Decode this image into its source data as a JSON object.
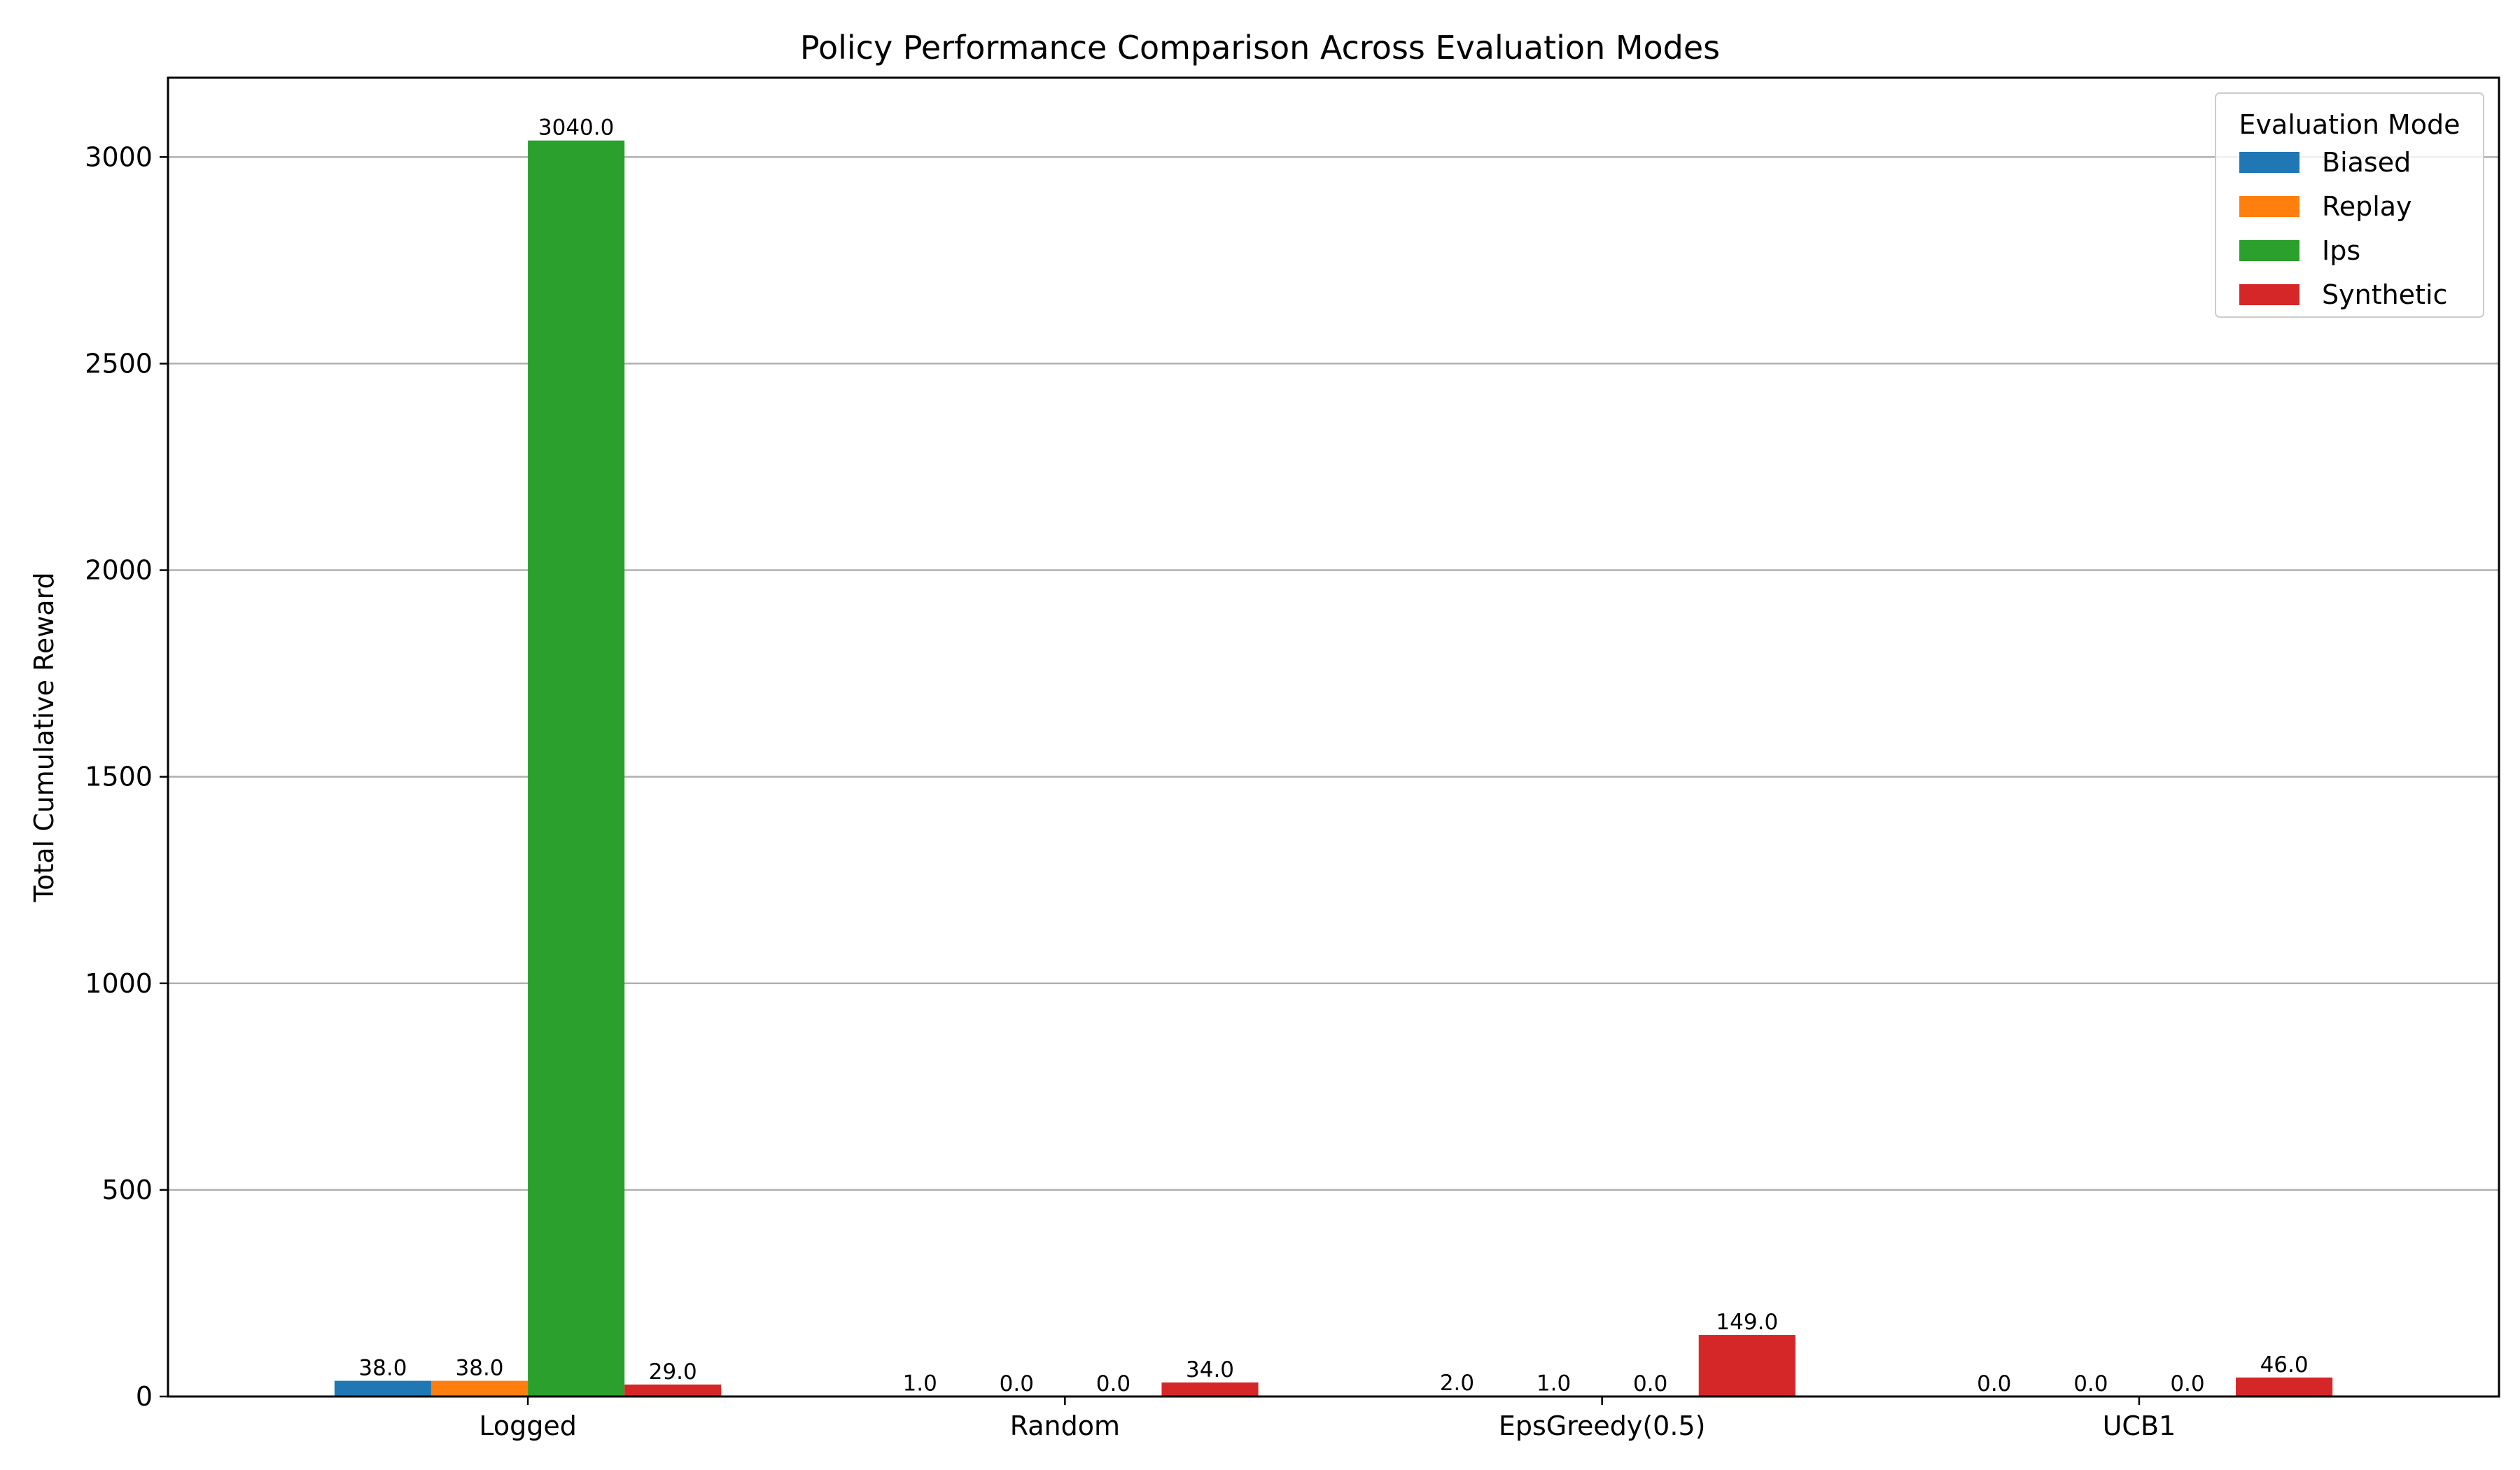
{
  "chart_data": {
    "type": "bar",
    "title": "Policy Performance Comparison Across Evaluation Modes",
    "xlabel": "",
    "ylabel": "Total Cumulative Reward",
    "categories": [
      "Logged",
      "Random",
      "EpsGreedy(0.5)",
      "UCB1"
    ],
    "series": [
      {
        "name": "Biased",
        "color": "#1f77b4",
        "values": [
          38.0,
          1.0,
          2.0,
          0.0
        ]
      },
      {
        "name": "Replay",
        "color": "#ff7f0e",
        "values": [
          38.0,
          0.0,
          1.0,
          0.0
        ]
      },
      {
        "name": "Ips",
        "color": "#2ca02c",
        "values": [
          3040.0,
          0.0,
          0.0,
          0.0
        ]
      },
      {
        "name": "Synthetic",
        "color": "#d62728",
        "values": [
          29.0,
          34.0,
          149.0,
          46.0
        ]
      }
    ],
    "ylim": [
      0,
      3192
    ],
    "yticks": [
      0,
      500,
      1000,
      1500,
      2000,
      2500,
      3000
    ],
    "grid": "horizontal",
    "legend": {
      "title": "Evaluation Mode",
      "placement": "top-right"
    },
    "data_labels": true
  }
}
